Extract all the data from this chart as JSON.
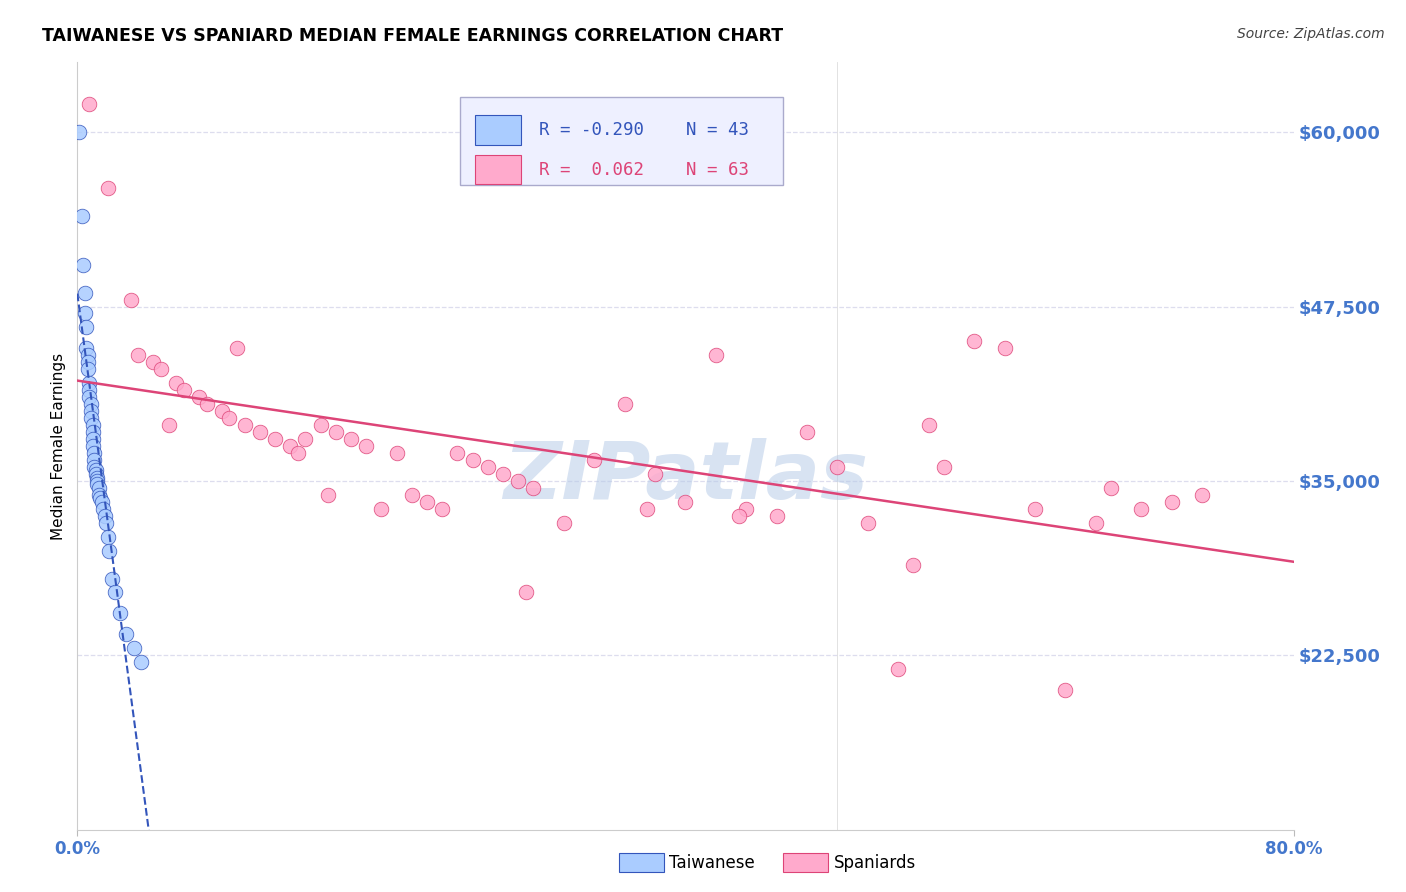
{
  "title": "TAIWANESE VS SPANIARD MEDIAN FEMALE EARNINGS CORRELATION CHART",
  "source": "Source: ZipAtlas.com",
  "ylabel": "Median Female Earnings",
  "ytick_labels": [
    "$22,500",
    "$35,000",
    "$47,500",
    "$60,000"
  ],
  "ytick_values": [
    22500,
    35000,
    47500,
    60000
  ],
  "ymin": 10000,
  "ymax": 65000,
  "xmin": 0.0,
  "xmax": 80.0,
  "taiwanese_color": "#aaccff",
  "spaniards_color": "#ffaacc",
  "taiwanese_R": -0.29,
  "taiwanese_N": 43,
  "spaniards_R": 0.062,
  "spaniards_N": 63,
  "watermark": "ZIPatlas",
  "watermark_color": "#b8cce8",
  "trend_blue_color": "#3355bb",
  "trend_pink_color": "#dd4477",
  "title_fontsize": 12.5,
  "axis_label_color": "#4477cc",
  "background_color": "#ffffff",
  "grid_color": "#ddddee",
  "taiwanese_x": [
    0.1,
    0.3,
    0.4,
    0.5,
    0.5,
    0.6,
    0.6,
    0.7,
    0.7,
    0.7,
    0.8,
    0.8,
    0.8,
    0.9,
    0.9,
    0.9,
    1.0,
    1.0,
    1.0,
    1.0,
    1.1,
    1.1,
    1.1,
    1.2,
    1.2,
    1.3,
    1.3,
    1.3,
    1.4,
    1.4,
    1.5,
    1.6,
    1.7,
    1.8,
    1.9,
    2.0,
    2.1,
    2.3,
    2.5,
    2.8,
    3.2,
    3.7,
    4.2
  ],
  "taiwanese_y": [
    60000,
    54000,
    50500,
    48500,
    47000,
    46000,
    44500,
    44000,
    43500,
    43000,
    42000,
    41500,
    41000,
    40500,
    40000,
    39500,
    39000,
    38500,
    38000,
    37500,
    37000,
    36500,
    36000,
    35800,
    35500,
    35200,
    35000,
    34800,
    34500,
    34000,
    33800,
    33500,
    33000,
    32500,
    32000,
    31000,
    30000,
    28000,
    27000,
    25500,
    24000,
    23000,
    22000
  ],
  "spaniards_x": [
    0.8,
    2.0,
    3.5,
    4.0,
    5.0,
    5.5,
    6.5,
    7.0,
    8.0,
    8.5,
    9.5,
    10.0,
    10.5,
    11.0,
    12.0,
    13.0,
    14.0,
    14.5,
    15.0,
    16.0,
    17.0,
    18.0,
    19.0,
    20.0,
    21.0,
    22.0,
    23.0,
    24.0,
    25.0,
    26.0,
    27.0,
    28.0,
    29.0,
    30.0,
    32.0,
    34.0,
    36.0,
    38.0,
    40.0,
    42.0,
    44.0,
    46.0,
    48.0,
    50.0,
    52.0,
    54.0,
    56.0,
    57.0,
    59.0,
    61.0,
    63.0,
    65.0,
    67.0,
    68.0,
    70.0,
    72.0,
    74.0,
    55.0,
    43.5,
    37.5,
    29.5,
    16.5,
    6.0
  ],
  "spaniards_y": [
    62000,
    56000,
    48000,
    44000,
    43500,
    43000,
    42000,
    41500,
    41000,
    40500,
    40000,
    39500,
    44500,
    39000,
    38500,
    38000,
    37500,
    37000,
    38000,
    39000,
    38500,
    38000,
    37500,
    33000,
    37000,
    34000,
    33500,
    33000,
    37000,
    36500,
    36000,
    35500,
    35000,
    34500,
    32000,
    36500,
    40500,
    35500,
    33500,
    44000,
    33000,
    32500,
    38500,
    36000,
    32000,
    21500,
    39000,
    36000,
    45000,
    44500,
    33000,
    20000,
    32000,
    34500,
    33000,
    33500,
    34000,
    29000,
    32500,
    33000,
    27000,
    34000,
    39000
  ]
}
